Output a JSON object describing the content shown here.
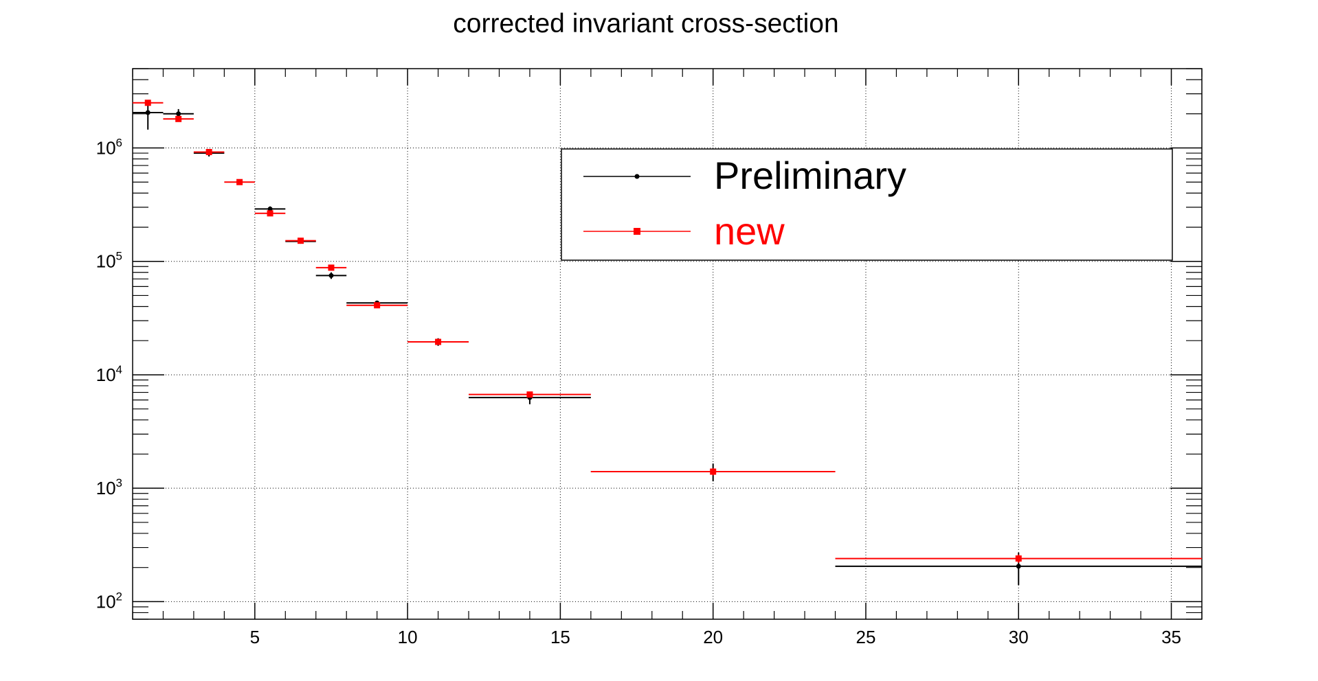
{
  "chart_data": {
    "type": "scatter",
    "title": "corrected invariant cross-section",
    "xlabel": "",
    "ylabel": "",
    "xlim": [
      1,
      36
    ],
    "ylim": [
      70,
      5000000
    ],
    "yscale": "log",
    "grid": true,
    "legend_position": "top-right",
    "x_ticks": [
      5,
      10,
      15,
      20,
      25,
      30,
      35
    ],
    "x_tick_labels": [
      "5",
      "10",
      "15",
      "20",
      "25",
      "30",
      "35"
    ],
    "y_ticks": [
      100,
      1000,
      10000,
      100000,
      1000000
    ],
    "y_tick_labels": [
      {
        "base": "10",
        "exp": "2"
      },
      {
        "base": "10",
        "exp": "3"
      },
      {
        "base": "10",
        "exp": "4"
      },
      {
        "base": "10",
        "exp": "5"
      },
      {
        "base": "10",
        "exp": "6"
      }
    ],
    "series": [
      {
        "name": "Preliminary",
        "color": "#000000",
        "marker": "circle",
        "points": [
          {
            "x": 1.5,
            "xlo": 1,
            "xhi": 2,
            "y": 2050000,
            "ylo": 1450000,
            "yhi": 2600000
          },
          {
            "x": 2.5,
            "xlo": 2,
            "xhi": 3,
            "y": 2000000,
            "ylo": 1850000,
            "yhi": 2200000
          },
          {
            "x": 3.5,
            "xlo": 3,
            "xhi": 4,
            "y": 900000,
            "ylo": 840000,
            "yhi": 960000
          },
          {
            "x": 5.5,
            "xlo": 5,
            "xhi": 6,
            "y": 290000,
            "ylo": 275000,
            "yhi": 305000
          },
          {
            "x": 6.5,
            "xlo": 6,
            "xhi": 7,
            "y": 150000,
            "ylo": 145000,
            "yhi": 156000
          },
          {
            "x": 7.5,
            "xlo": 7,
            "xhi": 8,
            "y": 75000,
            "ylo": 70000,
            "yhi": 80000
          },
          {
            "x": 9,
            "xlo": 8,
            "xhi": 10,
            "y": 43000,
            "ylo": 41000,
            "yhi": 45000
          },
          {
            "x": 11,
            "xlo": 10,
            "xhi": 12,
            "y": 19500,
            "ylo": 18000,
            "yhi": 21000
          },
          {
            "x": 14,
            "xlo": 12,
            "xhi": 16,
            "y": 6300,
            "ylo": 5500,
            "yhi": 7000
          },
          {
            "x": 20,
            "xlo": 16,
            "xhi": 24,
            "y": 1400,
            "ylo": 1150,
            "yhi": 1650
          },
          {
            "x": 30,
            "xlo": 24,
            "xhi": 36,
            "y": 205,
            "ylo": 140,
            "yhi": 270
          }
        ]
      },
      {
        "name": "new",
        "color": "#ff0000",
        "marker": "square",
        "points": [
          {
            "x": 1.5,
            "xlo": 1,
            "xhi": 2,
            "y": 2500000,
            "ylo": 2350000,
            "yhi": 2650000
          },
          {
            "x": 2.5,
            "xlo": 2,
            "xhi": 3,
            "y": 1800000,
            "ylo": 1720000,
            "yhi": 1880000
          },
          {
            "x": 3.5,
            "xlo": 3,
            "xhi": 4,
            "y": 920000,
            "ylo": 890000,
            "yhi": 950000
          },
          {
            "x": 4.5,
            "xlo": 4,
            "xhi": 5,
            "y": 500000,
            "ylo": 485000,
            "yhi": 515000
          },
          {
            "x": 5.5,
            "xlo": 5,
            "xhi": 6,
            "y": 265000,
            "ylo": 257000,
            "yhi": 273000
          },
          {
            "x": 6.5,
            "xlo": 6,
            "xhi": 7,
            "y": 152000,
            "ylo": 148000,
            "yhi": 156000
          },
          {
            "x": 7.5,
            "xlo": 7,
            "xhi": 8,
            "y": 88000,
            "ylo": 86000,
            "yhi": 90000
          },
          {
            "x": 9,
            "xlo": 8,
            "xhi": 10,
            "y": 41000,
            "ylo": 40000,
            "yhi": 42000
          },
          {
            "x": 11,
            "xlo": 10,
            "xhi": 12,
            "y": 19500,
            "ylo": 18500,
            "yhi": 20500
          },
          {
            "x": 14,
            "xlo": 12,
            "xhi": 16,
            "y": 6700,
            "ylo": 6400,
            "yhi": 7000
          },
          {
            "x": 20,
            "xlo": 16,
            "xhi": 24,
            "y": 1400,
            "ylo": 1300,
            "yhi": 1500
          },
          {
            "x": 30,
            "xlo": 24,
            "xhi": 36,
            "y": 240,
            "ylo": 220,
            "yhi": 260
          }
        ]
      }
    ]
  }
}
